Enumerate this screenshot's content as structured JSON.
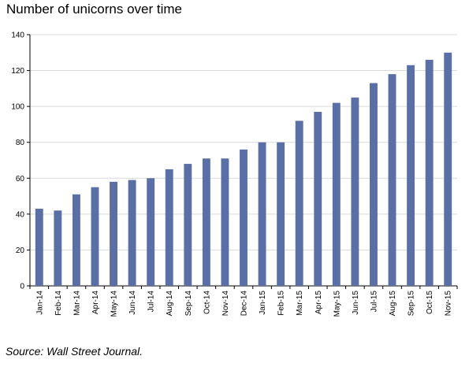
{
  "title": "Number of unicorns over time",
  "source": "Source: Wall Street Journal.",
  "chart_data": {
    "type": "bar",
    "title": "Number of unicorns over time",
    "xlabel": "",
    "ylabel": "",
    "categories": [
      "Jan-14",
      "Feb-14",
      "Mar-14",
      "Apr-14",
      "May-14",
      "Jun-14",
      "Jul-14",
      "Aug-14",
      "Sep-14",
      "Oct-14",
      "Nov-14",
      "Dec-14",
      "Jan-15",
      "Feb-15",
      "Mar-15",
      "Apr-15",
      "May-15",
      "Jun-15",
      "Jul-15",
      "Aug-15",
      "Sep-15",
      "Oct-15",
      "Nov-15"
    ],
    "values": [
      43,
      42,
      51,
      55,
      58,
      59,
      60,
      65,
      68,
      71,
      71,
      76,
      80,
      80,
      92,
      97,
      102,
      105,
      113,
      118,
      123,
      126,
      130
    ],
    "ylim": [
      0,
      140
    ],
    "yticks": [
      0,
      20,
      40,
      60,
      80,
      100,
      120,
      140
    ],
    "grid": true,
    "legend": "none",
    "bar_color": "#5b6fa7"
  }
}
